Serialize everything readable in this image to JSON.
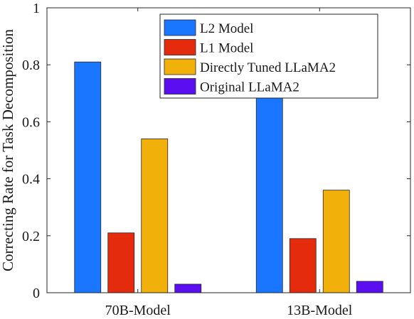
{
  "chart_data": {
    "type": "bar",
    "categories": [
      "70B-Model",
      "13B-Model"
    ],
    "series": [
      {
        "name": "L2 Model",
        "color": "#1a75ff",
        "values": [
          0.81,
          0.7
        ]
      },
      {
        "name": "L1 Model",
        "color": "#e52b0d",
        "values": [
          0.21,
          0.19
        ]
      },
      {
        "name": "Directly Tuned LLaMA2",
        "color": "#f2b10a",
        "values": [
          0.54,
          0.36
        ]
      },
      {
        "name": "Original LLaMA2",
        "color": "#5b0ff0",
        "values": [
          0.03,
          0.04
        ]
      }
    ],
    "ylabel": "Correcting Rate for Task Decomposition",
    "xlabel": "",
    "title": "",
    "ylim": [
      0,
      1
    ],
    "yticks": [
      "0",
      "0.2",
      "0.4",
      "0.6",
      "0.8",
      "1"
    ],
    "legend_position": "top-right",
    "grid": false
  }
}
